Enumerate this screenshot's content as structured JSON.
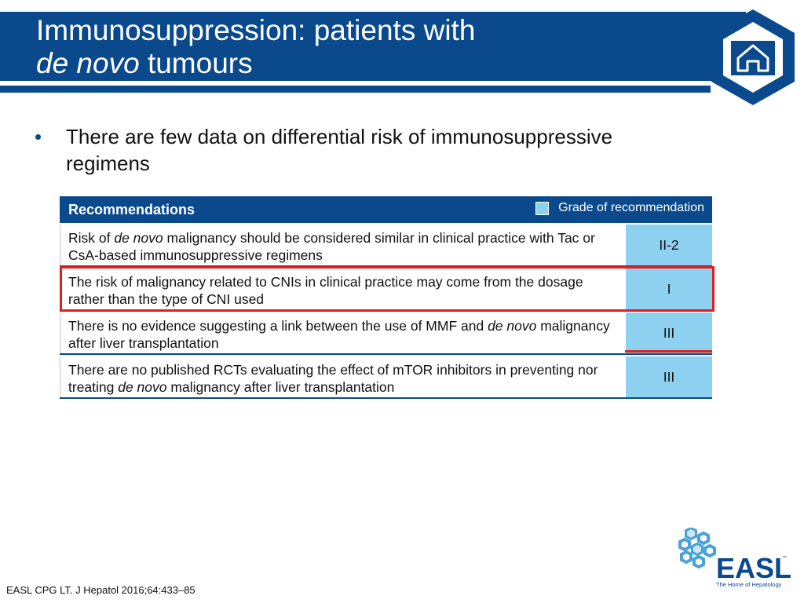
{
  "slide": {
    "title_line1": "Immunosuppression: patients with",
    "title_line2_italic": "de novo",
    "title_line2_rest": " tumours",
    "bullet": "There are few data on differential risk of immunosuppressive regimens"
  },
  "table": {
    "header": "Recommendations",
    "legend": "Grade of recommendation",
    "rows": [
      {
        "text_parts": [
          "Risk of ",
          "de novo",
          " malignancy should be considered similar in clinical practice with Tac or CsA-based immunosuppressive regimens"
        ],
        "grade": "II-2"
      },
      {
        "text_parts": [
          "The risk of malignancy related to CNIs in clinical practice may come from the dosage rather than the type of CNI used"
        ],
        "grade": "I"
      },
      {
        "text_parts": [
          "There is no evidence suggesting a link between the use of MMF and ",
          "de novo",
          " malignancy after liver transplantation"
        ],
        "grade": "III"
      },
      {
        "text_parts": [
          "There are no published RCTs evaluating the effect of mTOR inhibitors in preventing nor treating ",
          "de novo",
          " malignancy after liver transplantation"
        ],
        "grade": "III"
      }
    ]
  },
  "footer": {
    "citation": "EASL CPG LT. J Hepatol 2016;64:433–85"
  },
  "logo": {
    "name": "EASL",
    "tagline": "The Home of Hepatology",
    "tm": "™"
  },
  "icons": {
    "home": "home-icon"
  },
  "colors": {
    "brand_blue": "#0a4a8c",
    "grade_fill": "#8ed0ef",
    "highlight_red": "#e01e1e"
  }
}
